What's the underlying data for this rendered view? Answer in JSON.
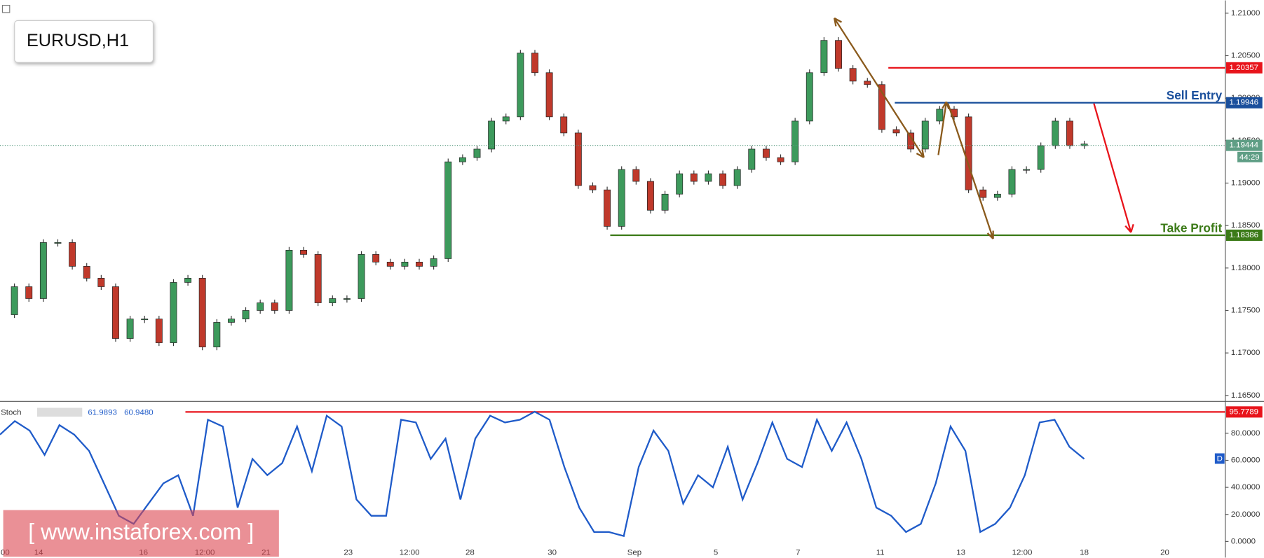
{
  "watermark": "[ www.instaforex.com ]",
  "xtick_labels": [
    ":00",
    "14",
    "16",
    "12:00",
    "21",
    "23",
    "12:00",
    "28",
    "30",
    "Sep",
    "5",
    "7",
    "11",
    "13",
    "12:00",
    "18",
    "20"
  ],
  "chart_data": [
    {
      "type": "candle",
      "title": "EURUSD,H1",
      "values": [
        1.1745,
        1.1778,
        1.1764,
        1.183,
        1.183,
        1.1802,
        1.1788,
        1.1778,
        1.1717,
        1.174,
        1.174,
        1.1712,
        1.1783,
        1.1788,
        1.1707,
        1.1736,
        1.174,
        1.175,
        1.1759,
        1.175,
        1.1821,
        1.1816,
        1.1759,
        1.1764,
        1.1764,
        1.1816,
        1.1807,
        1.1802,
        1.1807,
        1.1802,
        1.1811,
        1.1925,
        1.193,
        1.194,
        1.1973,
        1.1978,
        1.2053,
        1.203,
        1.1978,
        1.1959,
        1.1897,
        1.1892,
        1.1849,
        1.1916,
        1.1902,
        1.1868,
        1.1887,
        1.1911,
        1.1902,
        1.1911,
        1.1897,
        1.1916,
        1.194,
        1.193,
        1.1925,
        1.1973,
        1.203,
        1.2068,
        1.2035,
        1.202,
        1.2016,
        1.1963,
        1.1959,
        1.194,
        1.1973,
        1.1987,
        1.1978,
        1.1892,
        1.1883,
        1.1887,
        1.1916,
        1.1916,
        1.1944,
        1.1973,
        1.1944,
        1.1946
      ],
      "up_color": "#3d9a5c",
      "down_color": "#c0392b",
      "ylim": [
        1.1643,
        1.2115
      ],
      "yticks": [
        {
          "value": 1.21,
          "label": "1.21000"
        },
        {
          "value": 1.205,
          "label": "1.20500"
        },
        {
          "value": 1.2,
          "label": "1.20000"
        },
        {
          "value": 1.195,
          "label": "1.19500"
        },
        {
          "value": 1.19,
          "label": "1.19000"
        },
        {
          "value": 1.185,
          "label": "1.18500"
        },
        {
          "value": 1.18,
          "label": "1.18000"
        },
        {
          "value": 1.175,
          "label": "1.17500"
        },
        {
          "value": 1.17,
          "label": "1.17000"
        },
        {
          "value": 1.165,
          "label": "1.16500"
        }
      ],
      "levels": [
        {
          "value": 1.20357,
          "label": "1.20357",
          "color": "#e8141b"
        },
        {
          "value": 1.19946,
          "label": "1.19946",
          "color": "#1a4f9c",
          "annotation": "Sell Entry"
        },
        {
          "value": 1.18386,
          "label": "1.18386",
          "color": "#3b7a17",
          "annotation": "Take Profit"
        }
      ],
      "current": {
        "value": 1.19444,
        "label": "1.19444",
        "timer": "44:29",
        "color": "#5f9e85"
      }
    },
    {
      "type": "line",
      "title": "Stoch",
      "color": "#1f5bc9",
      "values": [
        79,
        89,
        82,
        64,
        86,
        79,
        67,
        43,
        19,
        13,
        28,
        43,
        49,
        19,
        90,
        85,
        25,
        61,
        49,
        58,
        85,
        52,
        93,
        85,
        31,
        19,
        19,
        90,
        88,
        61,
        76,
        31,
        76,
        93,
        88,
        90,
        96,
        90,
        55,
        25,
        7,
        7,
        4,
        55,
        82,
        67,
        28,
        49,
        40,
        70,
        31,
        58,
        88,
        61,
        55,
        90,
        67,
        88,
        61,
        25,
        19,
        7,
        13,
        43,
        85,
        67,
        7,
        13,
        25,
        49,
        88,
        90,
        70,
        61
      ],
      "readouts": [
        {
          "value": 61.9893,
          "label": "61.9893"
        },
        {
          "value": 60.948,
          "label": "60.9480"
        }
      ],
      "ylim": [
        -11.9,
        102.4
      ],
      "yticks": [
        {
          "value": 80,
          "label": "80.0000"
        },
        {
          "value": 60,
          "label": "60.0000"
        },
        {
          "value": 40,
          "label": "40.0000"
        },
        {
          "value": 20,
          "label": "20.0000"
        },
        {
          "value": 0,
          "label": "0.0000"
        }
      ],
      "level": {
        "value": 95.7789,
        "label": "95.7789",
        "color": "#e8141b"
      },
      "marker": "D"
    }
  ]
}
